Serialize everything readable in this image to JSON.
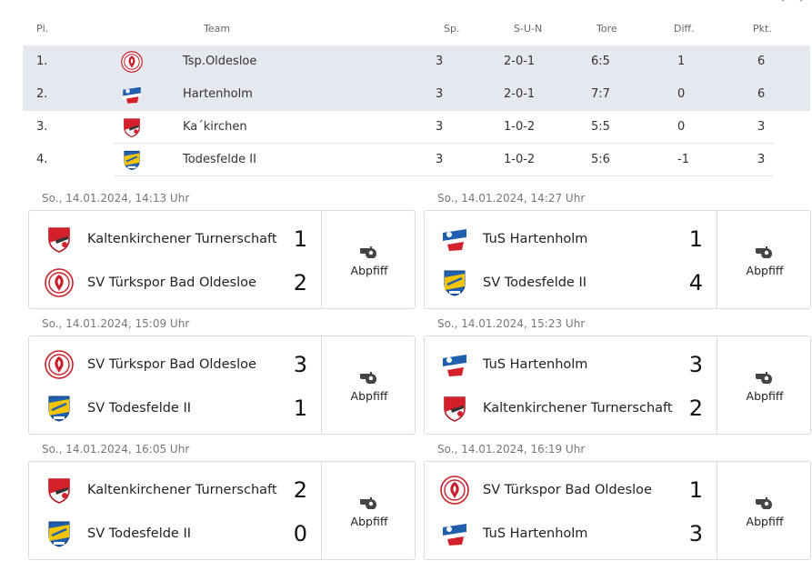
{
  "standings": {
    "headers": {
      "pl": "Pl.",
      "team": "Team",
      "sp": "Sp.",
      "sun": "S-U-N",
      "tore": "Tore",
      "diff": "Diff.",
      "pkt": "Pkt."
    },
    "rows": [
      {
        "pl": "1.",
        "team": "Tsp.Oldesloe",
        "logo": "tuerkspor-crest-icon",
        "sp": "3",
        "sun": "2-0-1",
        "tore": "6:5",
        "diff": "1",
        "pkt": "6"
      },
      {
        "pl": "2.",
        "team": "Hartenholm",
        "logo": "hartenholm-crest-icon",
        "sp": "3",
        "sun": "2-0-1",
        "tore": "7:7",
        "diff": "0",
        "pkt": "6"
      },
      {
        "pl": "3.",
        "team": "Ka´kirchen",
        "logo": "kaltenkirchen-crest-icon",
        "sp": "3",
        "sun": "1-0-2",
        "tore": "5:5",
        "diff": "0",
        "pkt": "3"
      },
      {
        "pl": "4.",
        "team": "Todesfelde II",
        "logo": "todesfelde-crest-icon",
        "sp": "3",
        "sun": "1-0-2",
        "tore": "5:6",
        "diff": "-1",
        "pkt": "3"
      }
    ]
  },
  "matches": [
    {
      "date": "So., 14.01.2024, 14:13 Uhr",
      "home": "Kaltenkirchener Turnerschaft",
      "home_score": "1",
      "away": "SV Türkspor Bad Oldesloe",
      "away_score": "2",
      "status": "Abpfiff"
    },
    {
      "date": "So., 14.01.2024, 14:27 Uhr",
      "home": "TuS Hartenholm",
      "home_score": "1",
      "away": "SV Todesfelde II",
      "away_score": "4",
      "status": "Abpfiff"
    },
    {
      "date": "So., 14.01.2024, 15:09 Uhr",
      "home": "SV Türkspor Bad Oldesloe",
      "home_score": "3",
      "away": "SV Todesfelde II",
      "away_score": "1",
      "status": "Abpfiff"
    },
    {
      "date": "So., 14.01.2024, 15:23 Uhr",
      "home": "TuS Hartenholm",
      "home_score": "3",
      "away": "Kaltenkirchener Turnerschaft",
      "away_score": "2",
      "status": "Abpfiff"
    },
    {
      "date": "So., 14.01.2024, 16:05 Uhr",
      "home": "Kaltenkirchener Turnerschaft",
      "home_score": "2",
      "away": "SV Todesfelde II",
      "away_score": "0",
      "status": "Abpfiff"
    },
    {
      "date": "So., 14.01.2024, 16:19 Uhr",
      "home": "SV Türkspor Bad Oldesloe",
      "home_score": "1",
      "away": "TuS Hartenholm",
      "away_score": "3",
      "status": "Abpfiff"
    }
  ],
  "colors": {
    "highlight_row": "#e6e8ef",
    "card_border": "#dcdcdc",
    "crest_red": "#c8202a",
    "crest_blue": "#1f5fae",
    "crest_yellow": "#f2c500"
  }
}
